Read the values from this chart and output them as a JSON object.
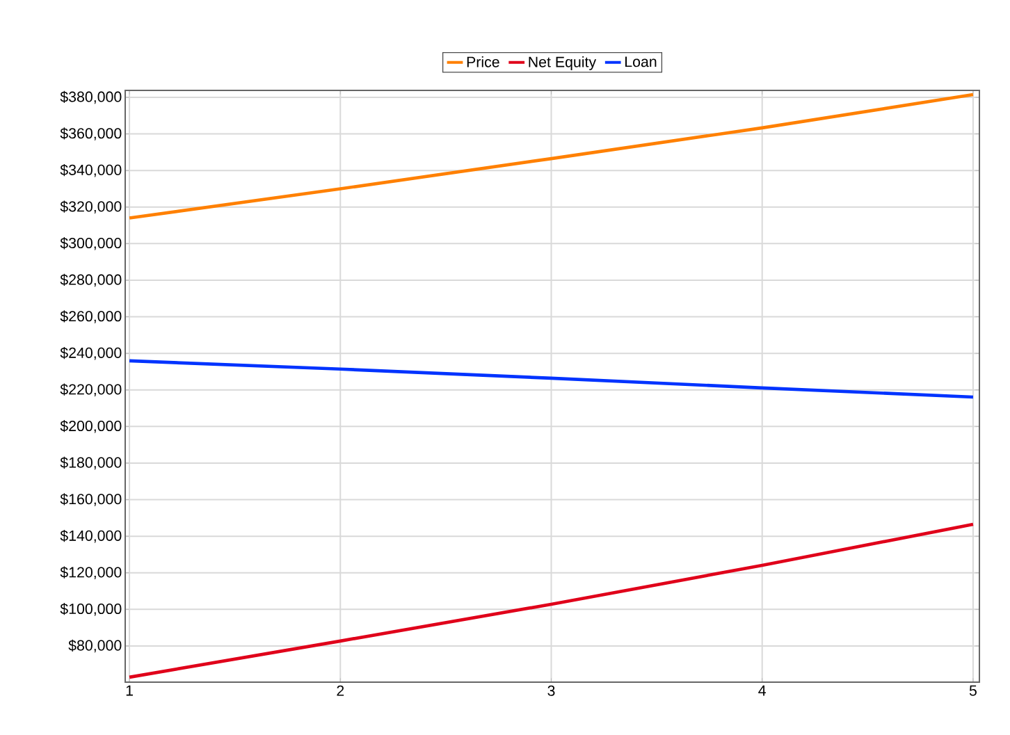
{
  "chart_data": {
    "type": "line",
    "x": [
      1,
      2,
      3,
      4,
      5
    ],
    "series": [
      {
        "name": "Price",
        "color": "#ff8000",
        "values": [
          314000,
          330000,
          346500,
          363300,
          381500
        ]
      },
      {
        "name": "Net Equity",
        "color": "#e0001a",
        "values": [
          62900,
          82700,
          102800,
          124100,
          146500
        ]
      },
      {
        "name": "Loan",
        "color": "#0033ff",
        "values": [
          235900,
          231400,
          226400,
          221100,
          216100
        ]
      }
    ],
    "xlim": [
      0.98,
      5.03
    ],
    "ylim": [
      60200,
      383800
    ],
    "xticks": [
      1,
      2,
      3,
      4,
      5
    ],
    "yticks": [
      {
        "value": 80000,
        "label": "$80,000"
      },
      {
        "value": 100000,
        "label": "$100,000"
      },
      {
        "value": 120000,
        "label": "$120,000"
      },
      {
        "value": 140000,
        "label": "$140,000"
      },
      {
        "value": 160000,
        "label": "$160,000"
      },
      {
        "value": 180000,
        "label": "$180,000"
      },
      {
        "value": 200000,
        "label": "$200,000"
      },
      {
        "value": 220000,
        "label": "$220,000"
      },
      {
        "value": 240000,
        "label": "$240,000"
      },
      {
        "value": 260000,
        "label": "$260,000"
      },
      {
        "value": 280000,
        "label": "$280,000"
      },
      {
        "value": 300000,
        "label": "$300,000"
      },
      {
        "value": 320000,
        "label": "$320,000"
      },
      {
        "value": 340000,
        "label": "$340,000"
      },
      {
        "value": 360000,
        "label": "$360,000"
      },
      {
        "value": 380000,
        "label": "$380,000"
      }
    ],
    "grid": true,
    "legend": "top"
  }
}
